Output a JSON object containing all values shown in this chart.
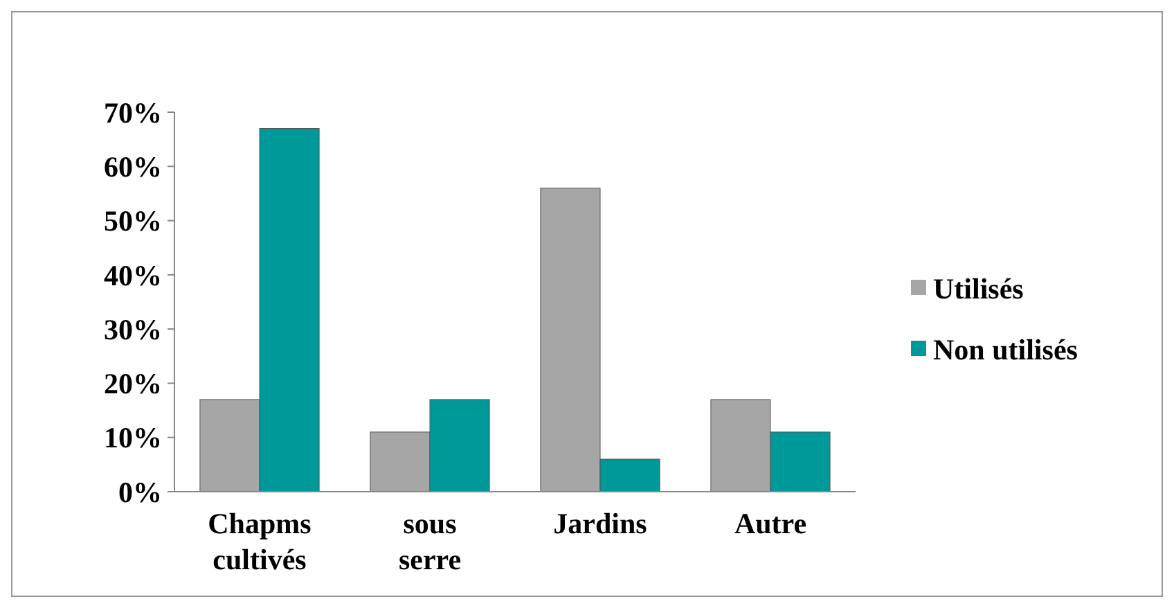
{
  "chart_data": {
    "type": "bar",
    "categories": [
      "Chapms cultivés",
      "sous serre",
      "Jardins",
      "Autre"
    ],
    "series": [
      {
        "name": "Utilisés",
        "color": "#a6a6a6",
        "values": [
          17,
          11,
          56,
          17
        ]
      },
      {
        "name": "Non utilisés",
        "color": "#009999",
        "values": [
          67,
          17,
          6,
          11
        ]
      }
    ],
    "ylim": [
      0,
      70
    ],
    "yticks": [
      {
        "value": 0,
        "label": "0%"
      },
      {
        "value": 10,
        "label": "10%"
      },
      {
        "value": 20,
        "label": "20%"
      },
      {
        "value": 30,
        "label": "30%"
      },
      {
        "value": 40,
        "label": "40%"
      },
      {
        "value": 50,
        "label": "50%"
      },
      {
        "value": 60,
        "label": "60%"
      },
      {
        "value": 70,
        "label": "70%"
      }
    ],
    "legend": "right",
    "grid": false
  }
}
